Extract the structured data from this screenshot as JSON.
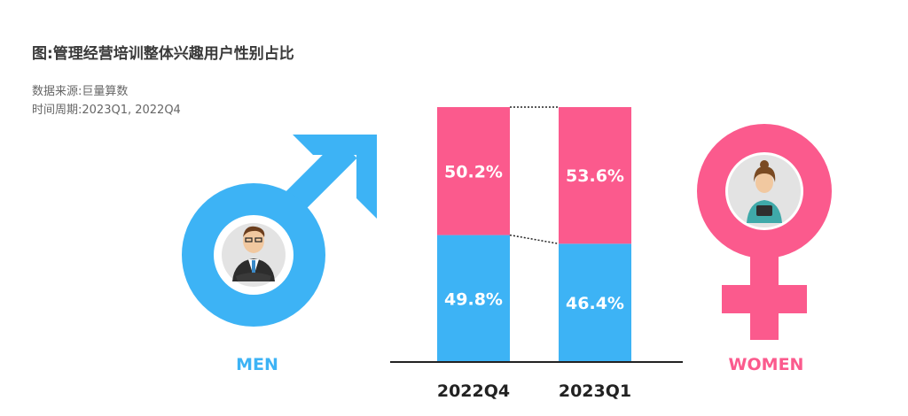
{
  "header": {
    "title": "图:管理经营培训整体兴趣用户性别占比",
    "source": "数据来源:巨量算数",
    "period": "时间周期:2023Q1, 2022Q4"
  },
  "colors": {
    "men": "#3db3f5",
    "women": "#fb5a8d",
    "axis": "#222222"
  },
  "icons": {
    "men": "male-symbol-icon",
    "women": "female-symbol-icon"
  },
  "chart_data": {
    "type": "bar",
    "stacked": true,
    "percent": true,
    "categories": [
      "2022Q4",
      "2023Q1"
    ],
    "series": [
      {
        "name": "MEN",
        "values": [
          49.8,
          46.4
        ],
        "labels": [
          "49.8%",
          "46.4%"
        ],
        "color": "#3db3f5"
      },
      {
        "name": "WOMEN",
        "values": [
          50.2,
          53.6
        ],
        "labels": [
          "50.2%",
          "53.6%"
        ],
        "color": "#fb5a8d"
      }
    ],
    "title": "图:管理经营培训整体兴趣用户性别占比",
    "xlabel": "",
    "ylabel": "",
    "ylim": [
      0,
      100
    ],
    "grid": false,
    "legend": "sides"
  }
}
